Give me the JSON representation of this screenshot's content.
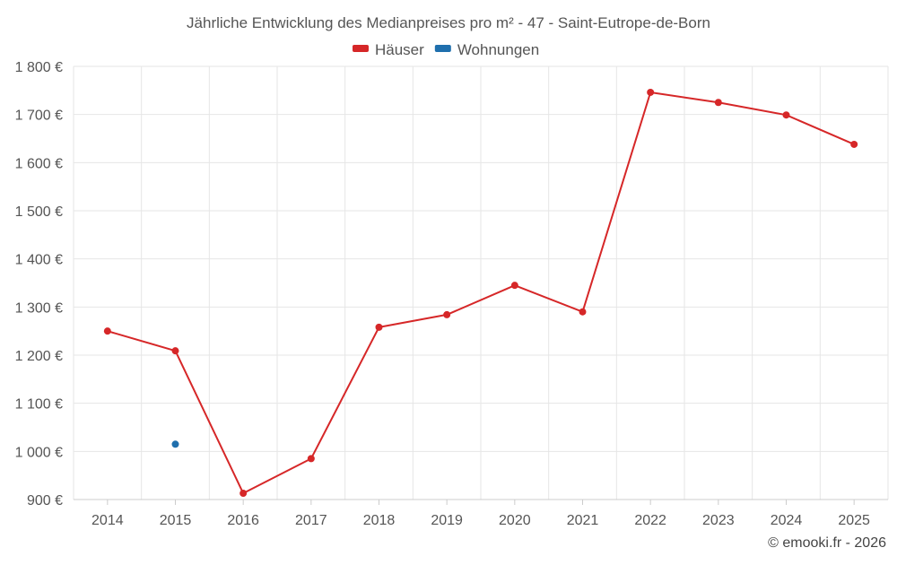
{
  "chart_data": {
    "type": "line",
    "title": "Jährliche Entwicklung des Medianpreises pro m² - 47 - Saint-Eutrope-de-Born",
    "x": [
      "2014",
      "2015",
      "2016",
      "2017",
      "2018",
      "2019",
      "2020",
      "2021",
      "2022",
      "2023",
      "2024",
      "2025"
    ],
    "series": [
      {
        "name": "Häuser",
        "color": "#d62728",
        "values": [
          1250,
          1209,
          913,
          985,
          1258,
          1284,
          1345,
          1290,
          1746,
          1725,
          1699,
          1638
        ]
      },
      {
        "name": "Wohnungen",
        "color": "#1f6fad",
        "values": [
          null,
          1015,
          null,
          null,
          null,
          null,
          null,
          null,
          null,
          null,
          null,
          null
        ]
      }
    ],
    "ylim": [
      900,
      1800
    ],
    "yticks": [
      900,
      1000,
      1100,
      1200,
      1300,
      1400,
      1500,
      1600,
      1700,
      1800
    ],
    "ytick_labels": [
      "900 €",
      "1 000 €",
      "1 100 €",
      "1 200 €",
      "1 300 €",
      "1 400 €",
      "1 500 €",
      "1 600 €",
      "1 700 €",
      "1 800 €"
    ],
    "xlabel": "",
    "ylabel": "",
    "grid": true,
    "legend_position": "top-center"
  },
  "credit": "© emooki.fr - 2026"
}
